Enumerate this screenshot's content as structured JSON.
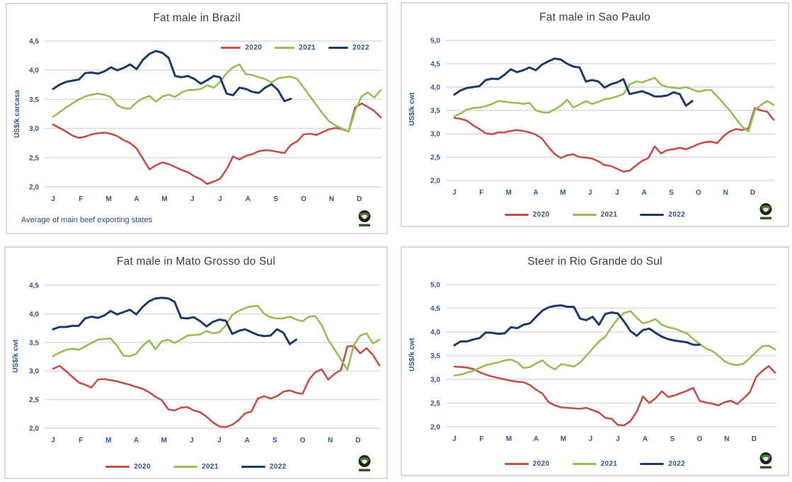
{
  "colors": {
    "red": "#C0504D",
    "green": "#9BBB59",
    "navy": "#1F3A66",
    "grid": "#D9D9D9",
    "tick_text": "#31548B",
    "title_text": "#3D3D3D",
    "panel_border": "#D8D8D8"
  },
  "months": [
    "J",
    "F",
    "M",
    "A",
    "M",
    "J",
    "J",
    "A",
    "S",
    "O",
    "N",
    "D"
  ],
  "logo_name": "globe-logo",
  "chart_data": [
    {
      "type": "line",
      "title": "Fat male in Brazil",
      "ylabel": "US$/k carcasa",
      "xlabel": "",
      "ylim": [
        2.0,
        4.5
      ],
      "ytick_labels": [
        "4,5",
        "4,0",
        "3,5",
        "3,0",
        "2,5",
        "2,0"
      ],
      "grid": true,
      "legend_position": "top-right",
      "footnote": "Average  of main beef exporting states",
      "categories": [
        "J",
        "F",
        "M",
        "A",
        "M",
        "J",
        "J",
        "A",
        "S",
        "O",
        "N",
        "D"
      ],
      "series": [
        {
          "name": "2020",
          "color": "#C0504D",
          "values": [
            3.07,
            3.01,
            2.95,
            2.88,
            2.84,
            2.86,
            2.9,
            2.92,
            2.93,
            2.91,
            2.87,
            2.8,
            2.75,
            2.66,
            2.48,
            2.3,
            2.37,
            2.42,
            2.39,
            2.34,
            2.29,
            2.25,
            2.18,
            2.13,
            2.05,
            2.09,
            2.14,
            2.3,
            2.52,
            2.47,
            2.53,
            2.56,
            2.61,
            2.63,
            2.62,
            2.6,
            2.58,
            2.72,
            2.78,
            2.9,
            2.91,
            2.89,
            2.94,
            2.99,
            3.01,
            2.99,
            2.95,
            3.36,
            3.43,
            3.37,
            3.3,
            3.19
          ]
        },
        {
          "name": "2021",
          "color": "#9BBB59",
          "values": [
            3.2,
            3.28,
            3.36,
            3.43,
            3.5,
            3.55,
            3.58,
            3.6,
            3.58,
            3.54,
            3.4,
            3.35,
            3.34,
            3.45,
            3.52,
            3.56,
            3.46,
            3.55,
            3.58,
            3.54,
            3.62,
            3.66,
            3.66,
            3.68,
            3.74,
            3.7,
            3.8,
            3.95,
            4.05,
            4.1,
            3.93,
            3.92,
            3.88,
            3.85,
            3.79,
            3.86,
            3.88,
            3.89,
            3.85,
            3.7,
            3.55,
            3.4,
            3.25,
            3.12,
            3.05,
            3.0,
            2.95,
            3.3,
            3.55,
            3.62,
            3.53,
            3.66
          ]
        },
        {
          "name": "2022",
          "color": "#1F3A66",
          "values": [
            3.68,
            3.75,
            3.8,
            3.82,
            3.84,
            3.95,
            3.96,
            3.94,
            3.98,
            4.05,
            4.0,
            4.04,
            4.1,
            4.02,
            4.18,
            4.28,
            4.33,
            4.3,
            4.21,
            3.9,
            3.88,
            3.9,
            3.85,
            3.77,
            3.83,
            3.9,
            3.88,
            3.6,
            3.57,
            3.7,
            3.68,
            3.63,
            3.61,
            3.7,
            3.76,
            3.66,
            3.47,
            3.51
          ]
        }
      ]
    },
    {
      "type": "line",
      "title": "Fat male in Sao Paulo",
      "ylabel": "US$/k cwt",
      "xlabel": "",
      "ylim": [
        2.0,
        5.0
      ],
      "ytick_labels": [
        "5,0",
        "4,5",
        "4,0",
        "3,5",
        "3,0",
        "2,5",
        "2,0"
      ],
      "grid": true,
      "legend_position": "bottom",
      "footnote": "",
      "categories": [
        "J",
        "F",
        "M",
        "A",
        "M",
        "J",
        "J",
        "A",
        "S",
        "O",
        "N",
        "D"
      ],
      "series": [
        {
          "name": "2020",
          "color": "#C0504D",
          "values": [
            3.34,
            3.32,
            3.28,
            3.18,
            3.1,
            3.01,
            2.99,
            3.03,
            3.03,
            3.06,
            3.08,
            3.06,
            3.03,
            2.98,
            2.9,
            2.72,
            2.57,
            2.48,
            2.54,
            2.56,
            2.5,
            2.49,
            2.47,
            2.41,
            2.33,
            2.31,
            2.25,
            2.19,
            2.21,
            2.32,
            2.42,
            2.48,
            2.73,
            2.58,
            2.65,
            2.67,
            2.7,
            2.67,
            2.72,
            2.78,
            2.82,
            2.83,
            2.8,
            2.95,
            3.05,
            3.1,
            3.08,
            3.12,
            3.55,
            3.5,
            3.47,
            3.3
          ]
        },
        {
          "name": "2021",
          "color": "#9BBB59",
          "values": [
            3.37,
            3.44,
            3.52,
            3.55,
            3.56,
            3.59,
            3.64,
            3.7,
            3.69,
            3.67,
            3.66,
            3.64,
            3.66,
            3.5,
            3.46,
            3.45,
            3.52,
            3.6,
            3.73,
            3.56,
            3.63,
            3.7,
            3.64,
            3.68,
            3.74,
            3.76,
            3.8,
            3.85,
            4.05,
            4.12,
            4.1,
            4.15,
            4.2,
            4.05,
            4.0,
            3.99,
            3.97,
            4.0,
            3.95,
            3.9,
            3.93,
            3.94,
            3.8,
            3.65,
            3.5,
            3.32,
            3.15,
            3.05,
            3.5,
            3.62,
            3.7,
            3.62
          ]
        },
        {
          "name": "2022",
          "color": "#1F3A66",
          "values": [
            3.84,
            3.93,
            3.98,
            4.0,
            4.02,
            4.15,
            4.18,
            4.17,
            4.26,
            4.38,
            4.32,
            4.36,
            4.42,
            4.36,
            4.48,
            4.55,
            4.61,
            4.59,
            4.5,
            4.44,
            4.42,
            4.12,
            4.15,
            4.12,
            3.99,
            4.06,
            4.1,
            4.17,
            3.85,
            3.88,
            3.91,
            3.86,
            3.8,
            3.8,
            3.82,
            3.89,
            3.85,
            3.6,
            3.7
          ]
        }
      ]
    },
    {
      "type": "line",
      "title": "Fat male in Mato Grosso do Sul",
      "ylabel": "US$/k cwt",
      "xlabel": "",
      "ylim": [
        2.0,
        4.5
      ],
      "ytick_labels": [
        "4,5",
        "4,0",
        "3,5",
        "3,0",
        "2,5",
        "2,0"
      ],
      "grid": true,
      "legend_position": "bottom",
      "footnote": "",
      "categories": [
        "J",
        "F",
        "M",
        "A",
        "M",
        "J",
        "J",
        "A",
        "S",
        "O",
        "N",
        "D"
      ],
      "series": [
        {
          "name": "2020",
          "color": "#C0504D",
          "values": [
            3.04,
            3.09,
            3.0,
            2.9,
            2.8,
            2.76,
            2.71,
            2.85,
            2.86,
            2.84,
            2.82,
            2.79,
            2.76,
            2.72,
            2.69,
            2.63,
            2.55,
            2.49,
            2.33,
            2.31,
            2.36,
            2.37,
            2.31,
            2.28,
            2.2,
            2.1,
            2.03,
            2.02,
            2.06,
            2.14,
            2.26,
            2.29,
            2.52,
            2.56,
            2.52,
            2.56,
            2.64,
            2.66,
            2.62,
            2.6,
            2.85,
            2.98,
            3.03,
            2.85,
            2.95,
            3.02,
            3.43,
            3.44,
            3.31,
            3.4,
            3.28,
            3.1
          ]
        },
        {
          "name": "2021",
          "color": "#9BBB59",
          "values": [
            3.26,
            3.32,
            3.37,
            3.39,
            3.37,
            3.43,
            3.49,
            3.55,
            3.56,
            3.57,
            3.44,
            3.27,
            3.26,
            3.3,
            3.44,
            3.54,
            3.38,
            3.52,
            3.55,
            3.49,
            3.55,
            3.62,
            3.63,
            3.64,
            3.7,
            3.66,
            3.68,
            3.8,
            3.98,
            4.05,
            4.1,
            4.13,
            4.14,
            4.0,
            3.94,
            3.92,
            3.92,
            3.95,
            3.9,
            3.87,
            3.95,
            3.96,
            3.8,
            3.55,
            3.38,
            3.2,
            3.02,
            3.45,
            3.62,
            3.66,
            3.48,
            3.55
          ]
        },
        {
          "name": "2022",
          "color": "#1F3A66",
          "values": [
            3.73,
            3.77,
            3.77,
            3.79,
            3.79,
            3.92,
            3.95,
            3.93,
            3.97,
            4.05,
            3.99,
            4.03,
            4.07,
            3.99,
            4.12,
            4.22,
            4.27,
            4.28,
            4.27,
            4.21,
            3.93,
            3.92,
            3.94,
            3.87,
            3.78,
            3.86,
            3.9,
            3.88,
            3.65,
            3.7,
            3.73,
            3.68,
            3.63,
            3.61,
            3.62,
            3.73,
            3.67,
            3.47,
            3.55
          ]
        }
      ]
    },
    {
      "type": "line",
      "title": "Steer  in Rio Grande do Sul",
      "ylabel": "US$/k cwt",
      "xlabel": "",
      "ylim": [
        2.0,
        5.0
      ],
      "ytick_labels": [
        "5,0",
        "4,5",
        "4,0",
        "3,5",
        "3,0",
        "2,5",
        "2,0"
      ],
      "grid": true,
      "legend_position": "bottom",
      "footnote": "",
      "categories": [
        "J",
        "F",
        "M",
        "A",
        "M",
        "J",
        "J",
        "A",
        "S",
        "O",
        "N",
        "D"
      ],
      "series": [
        {
          "name": "2020",
          "color": "#C0504D",
          "values": [
            3.27,
            3.26,
            3.25,
            3.22,
            3.15,
            3.1,
            3.06,
            3.03,
            3.0,
            2.97,
            2.95,
            2.94,
            2.88,
            2.78,
            2.7,
            2.52,
            2.45,
            2.41,
            2.4,
            2.39,
            2.38,
            2.4,
            2.35,
            2.3,
            2.19,
            2.17,
            2.04,
            2.03,
            2.12,
            2.32,
            2.64,
            2.5,
            2.6,
            2.75,
            2.63,
            2.66,
            2.71,
            2.76,
            2.82,
            2.55,
            2.51,
            2.49,
            2.45,
            2.52,
            2.55,
            2.48,
            2.6,
            2.73,
            3.05,
            3.18,
            3.28,
            3.14
          ]
        },
        {
          "name": "2021",
          "color": "#9BBB59",
          "values": [
            3.08,
            3.1,
            3.14,
            3.18,
            3.24,
            3.3,
            3.33,
            3.36,
            3.4,
            3.42,
            3.36,
            3.24,
            3.26,
            3.34,
            3.4,
            3.28,
            3.21,
            3.32,
            3.3,
            3.27,
            3.35,
            3.5,
            3.65,
            3.8,
            3.9,
            4.1,
            4.28,
            4.4,
            4.44,
            4.3,
            4.18,
            4.22,
            4.27,
            4.15,
            4.1,
            4.07,
            4.02,
            3.97,
            3.85,
            3.75,
            3.65,
            3.6,
            3.5,
            3.38,
            3.32,
            3.3,
            3.33,
            3.45,
            3.58,
            3.7,
            3.71,
            3.63
          ]
        },
        {
          "name": "2022",
          "color": "#1F3A66",
          "values": [
            3.72,
            3.8,
            3.8,
            3.84,
            3.87,
            3.99,
            3.98,
            3.96,
            3.97,
            4.1,
            4.08,
            4.15,
            4.18,
            4.32,
            4.45,
            4.52,
            4.55,
            4.56,
            4.53,
            4.53,
            4.28,
            4.25,
            4.32,
            4.15,
            4.38,
            4.41,
            4.39,
            4.22,
            4.02,
            3.92,
            4.04,
            4.07,
            3.98,
            3.9,
            3.85,
            3.82,
            3.8,
            3.78,
            3.73,
            3.73
          ]
        }
      ]
    }
  ]
}
